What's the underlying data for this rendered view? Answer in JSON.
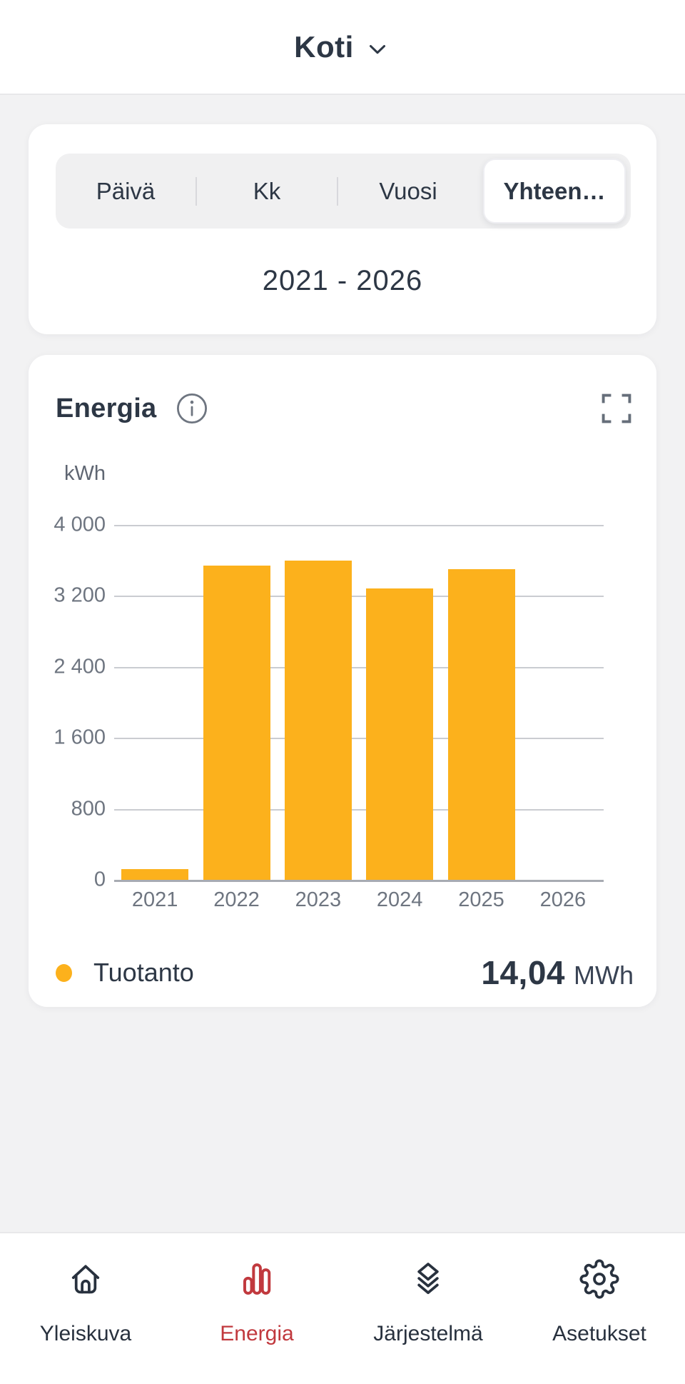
{
  "header": {
    "title": "Koti"
  },
  "period": {
    "tabs": [
      {
        "label": "Päivä",
        "selected": false
      },
      {
        "label": "Kk",
        "selected": false
      },
      {
        "label": "Vuosi",
        "selected": false
      },
      {
        "label": "Yhteen…",
        "selected": true
      }
    ],
    "range": "2021 - 2026"
  },
  "energy_card": {
    "title": "Energia"
  },
  "chart_data": {
    "type": "bar",
    "title": "Energia",
    "unit": "kWh",
    "categories": [
      "2021",
      "2022",
      "2023",
      "2024",
      "2025",
      "2026"
    ],
    "series": [
      {
        "name": "Tuotanto",
        "values": [
          120,
          3540,
          3600,
          3280,
          3500,
          0
        ]
      }
    ],
    "ylim": [
      0,
      4000
    ],
    "yticks": [
      {
        "value": 4000,
        "label": "4 000"
      },
      {
        "value": 3200,
        "label": "3 200"
      },
      {
        "value": 2400,
        "label": "2 400"
      },
      {
        "value": 1600,
        "label": "1 600"
      },
      {
        "value": 800,
        "label": "800"
      },
      {
        "value": 0,
        "label": "0"
      }
    ],
    "grid": true,
    "legend_position": "bottom",
    "bar_color": "#fcb11c",
    "total": {
      "value_label": "14,04",
      "unit": "MWh"
    }
  },
  "nav": {
    "items": [
      {
        "label": "Yleiskuva",
        "icon": "home-icon",
        "active": false
      },
      {
        "label": "Energia",
        "icon": "bar-chart-icon",
        "active": true
      },
      {
        "label": "Järjestelmä",
        "icon": "layers-icon",
        "active": false
      },
      {
        "label": "Asetukset",
        "icon": "gear-icon",
        "active": false
      }
    ]
  },
  "colors": {
    "accent_bar": "#fcb11c",
    "active_nav": "#c1393e",
    "text_dark": "#2d3745",
    "text_gray": "#6e7580",
    "background": "#f2f2f3"
  }
}
